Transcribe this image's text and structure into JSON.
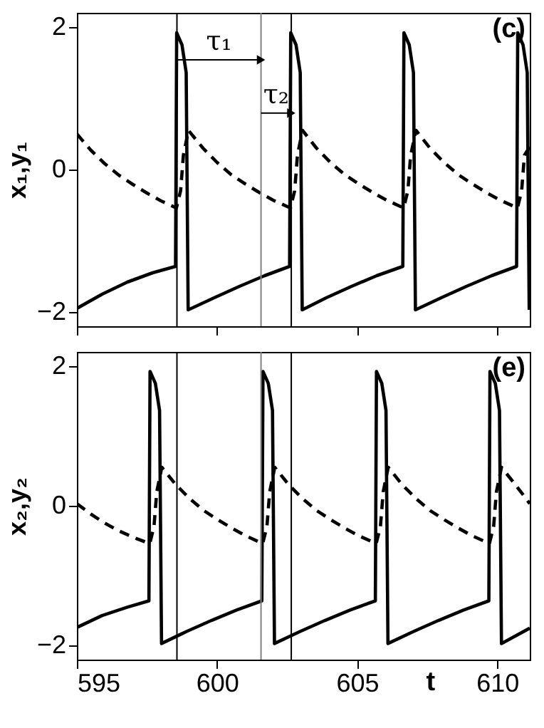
{
  "chart_data": [
    {
      "type": "line",
      "ylabel": "x₁,y₁",
      "xlim": [
        595,
        611.16
      ],
      "ylim": [
        -2.2,
        2.2
      ],
      "xticks": [
        595,
        600,
        605,
        610
      ],
      "yticks": [
        -2,
        0,
        2
      ],
      "tick_labels": "y",
      "series": [
        {
          "color": "#000000",
          "line_style": "solid",
          "x": [
            595.0,
            595.9,
            596.8,
            597.7,
            598.52,
            598.56,
            598.75,
            598.9,
            598.97,
            599.9,
            600.8,
            601.7,
            602.59,
            602.63,
            602.82,
            602.97,
            603.04,
            603.9,
            604.8,
            605.7,
            606.63,
            606.67,
            606.86,
            607.01,
            607.08,
            608.0,
            608.9,
            609.8,
            610.69,
            610.73,
            610.92,
            611.07,
            611.14
          ],
          "values": [
            -1.95,
            -1.75,
            -1.58,
            -1.45,
            -1.36,
            1.92,
            1.75,
            1.36,
            -1.97,
            -1.8,
            -1.64,
            -1.49,
            -1.36,
            1.92,
            1.75,
            1.36,
            -1.97,
            -1.8,
            -1.64,
            -1.49,
            -1.36,
            1.92,
            1.75,
            1.36,
            -1.97,
            -1.8,
            -1.64,
            -1.49,
            -1.36,
            1.92,
            1.75,
            1.36,
            -1.97
          ]
        },
        {
          "color": "#000000",
          "line_style": "dashed",
          "x": [
            595.0,
            595.5,
            596.0,
            596.5,
            597.0,
            597.5,
            598.0,
            598.55,
            598.7,
            598.8,
            598.98,
            599.5,
            600.0,
            600.5,
            601.0,
            601.5,
            602.0,
            602.62,
            602.77,
            602.87,
            603.05,
            603.55,
            604.05,
            604.55,
            605.05,
            605.55,
            606.05,
            606.66,
            606.81,
            606.91,
            607.1,
            607.6,
            608.1,
            608.6,
            609.1,
            609.6,
            610.1,
            610.72,
            610.87,
            610.97,
            611.16
          ],
          "values": [
            0.5,
            0.27,
            0.08,
            -0.08,
            -0.21,
            -0.33,
            -0.44,
            -0.54,
            -0.3,
            0.2,
            0.55,
            0.3,
            0.1,
            -0.07,
            -0.2,
            -0.32,
            -0.43,
            -0.54,
            -0.3,
            0.2,
            0.55,
            0.3,
            0.1,
            -0.07,
            -0.2,
            -0.32,
            -0.43,
            -0.54,
            -0.3,
            0.2,
            0.55,
            0.3,
            0.1,
            -0.07,
            -0.2,
            -0.32,
            -0.43,
            -0.54,
            -0.3,
            0.2,
            0.32
          ]
        }
      ],
      "ref_lines": [
        {
          "axis": "x",
          "value": 598.57,
          "color": "#000000"
        },
        {
          "axis": "x",
          "value": 601.57,
          "color": "#808080"
        },
        {
          "axis": "x",
          "value": 602.65,
          "color": "#000000"
        }
      ],
      "annotations": [
        "(c)",
        "τ₁",
        "τ₂"
      ]
    },
    {
      "type": "line",
      "ylabel": "x₂,y₂",
      "xlabel": "t",
      "xlim": [
        595,
        611.16
      ],
      "ylim": [
        -2.2,
        2.2
      ],
      "xticks": [
        595,
        600,
        605,
        610
      ],
      "yticks": [
        -2,
        0,
        2
      ],
      "series": [
        {
          "color": "#000000",
          "line_style": "solid",
          "x": [
            595.0,
            595.9,
            596.8,
            597.57,
            597.61,
            597.8,
            597.95,
            598.02,
            598.9,
            599.8,
            600.7,
            601.6,
            601.64,
            601.83,
            601.98,
            602.05,
            602.95,
            603.85,
            604.75,
            605.65,
            605.69,
            605.88,
            606.03,
            606.1,
            607.0,
            607.9,
            608.8,
            609.7,
            609.74,
            609.93,
            610.08,
            610.15,
            611.16
          ],
          "values": [
            -1.74,
            -1.57,
            -1.45,
            -1.36,
            1.92,
            1.75,
            1.36,
            -1.97,
            -1.8,
            -1.64,
            -1.49,
            -1.36,
            1.92,
            1.75,
            1.36,
            -1.97,
            -1.8,
            -1.64,
            -1.49,
            -1.36,
            1.92,
            1.75,
            1.36,
            -1.97,
            -1.8,
            -1.64,
            -1.49,
            -1.36,
            1.92,
            1.75,
            1.36,
            -1.97,
            -1.75
          ]
        },
        {
          "color": "#000000",
          "line_style": "dashed",
          "x": [
            595.0,
            595.5,
            596.0,
            596.5,
            597.0,
            597.6,
            597.75,
            597.85,
            598.03,
            598.53,
            599.03,
            599.53,
            600.03,
            600.53,
            601.03,
            601.63,
            601.78,
            601.88,
            602.06,
            602.56,
            603.06,
            603.56,
            604.06,
            604.56,
            605.06,
            605.68,
            605.83,
            605.93,
            606.11,
            606.61,
            607.11,
            607.61,
            608.11,
            608.61,
            609.11,
            609.72,
            609.87,
            609.97,
            610.15,
            610.65,
            611.16
          ],
          "values": [
            0.03,
            -0.12,
            -0.25,
            -0.36,
            -0.45,
            -0.54,
            -0.3,
            0.2,
            0.55,
            0.3,
            0.1,
            -0.07,
            -0.2,
            -0.32,
            -0.43,
            -0.54,
            -0.3,
            0.2,
            0.55,
            0.3,
            0.1,
            -0.07,
            -0.2,
            -0.32,
            -0.43,
            -0.54,
            -0.3,
            0.2,
            0.55,
            0.3,
            0.1,
            -0.07,
            -0.2,
            -0.32,
            -0.43,
            -0.54,
            -0.3,
            0.2,
            0.55,
            0.3,
            0.03
          ]
        }
      ],
      "ref_lines": [
        {
          "axis": "x",
          "value": 598.57,
          "color": "#000000"
        },
        {
          "axis": "x",
          "value": 601.57,
          "color": "#808080"
        },
        {
          "axis": "x",
          "value": 602.65,
          "color": "#000000"
        }
      ],
      "annotations": [
        "(e)"
      ]
    }
  ]
}
